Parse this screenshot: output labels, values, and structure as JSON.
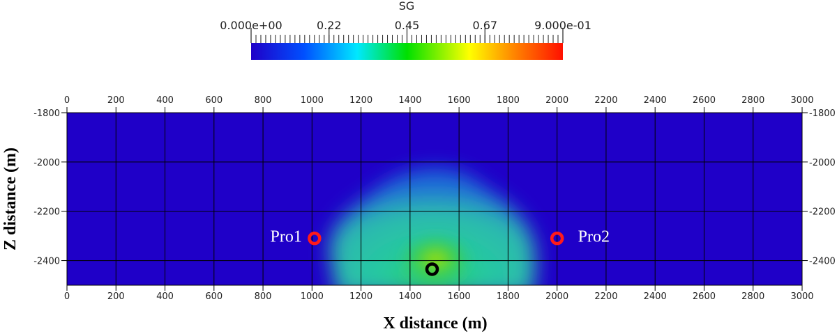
{
  "chart_data": {
    "type": "heatmap",
    "variable": "SG",
    "colorbar": {
      "title": "SG",
      "min": 0.0,
      "max": 0.9,
      "tick_labels": [
        "0.000e+00",
        "0.22",
        "0.45",
        "0.67",
        "9.000e-01"
      ],
      "tick_values": [
        0.0,
        0.225,
        0.45,
        0.675,
        0.9
      ],
      "colormap": [
        "#1f00c8",
        "#0050ff",
        "#00e8ff",
        "#00e000",
        "#ffff00",
        "#ff8000",
        "#ff1000"
      ]
    },
    "xlabel": "X distance (m)",
    "ylabel": "Z distance (m)",
    "xlim": [
      0,
      3000
    ],
    "ylim": [
      -2500,
      -1800
    ],
    "x_ticks": [
      0,
      200,
      400,
      600,
      800,
      1000,
      1200,
      1400,
      1600,
      1800,
      2000,
      2200,
      2400,
      2600,
      2800,
      3000
    ],
    "y_ticks": [
      -1800,
      -2000,
      -2200,
      -2400
    ],
    "background_value": 0.0,
    "plume": {
      "peak_value": 0.55,
      "bulk_value": 0.32,
      "x_range": [
        1100,
        1900
      ],
      "top_z": -2000,
      "bottom_z": -2500,
      "center_x": 1500
    },
    "grid": true,
    "wells": [
      {
        "name": "Pro1",
        "x": 1010,
        "z": -2310,
        "color": "#ff1a1a",
        "label": "Pro1"
      },
      {
        "name": "Pro2",
        "x": 2000,
        "z": -2310,
        "color": "#ff1a1a",
        "label": "Pro2"
      },
      {
        "name": "Injector",
        "x": 1490,
        "z": -2435,
        "color": "#000000",
        "label": ""
      }
    ]
  }
}
